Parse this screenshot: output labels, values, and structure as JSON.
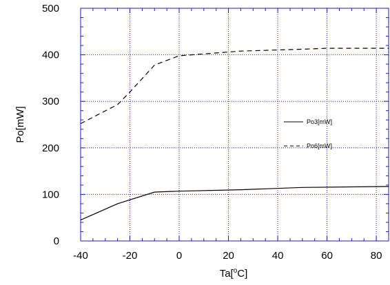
{
  "chart_data": {
    "type": "line",
    "title": "",
    "xlabel": "Ta[",
    "xlabel_sup": "o",
    "xlabel_suffix": "C]",
    "ylabel": "Po[mW]",
    "xlim": [
      -40,
      85
    ],
    "ylim": [
      0,
      500
    ],
    "xticks": [
      -40,
      -20,
      0,
      20,
      40,
      60,
      80
    ],
    "xtick_labels": [
      "-40",
      "-20",
      "0",
      "20",
      "40",
      "60",
      "80"
    ],
    "yticks": [
      0,
      100,
      200,
      300,
      400,
      500
    ],
    "ytick_labels": [
      "0",
      "100",
      "200",
      "300",
      "400",
      "500"
    ],
    "grid": true,
    "legend_position": "right",
    "series": [
      {
        "name": "Po3[mW]",
        "style": "solid",
        "color": "#000000",
        "x": [
          -40,
          -25,
          -10,
          0,
          25,
          50,
          85
        ],
        "y": [
          45,
          80,
          105,
          107,
          110,
          115,
          117
        ]
      },
      {
        "name": "Po6[mW]",
        "style": "dashed",
        "color": "#000000",
        "x": [
          -40,
          -25,
          -20,
          -10,
          0,
          25,
          50,
          60,
          85
        ],
        "y": [
          252,
          293,
          320,
          378,
          398,
          408,
          412,
          414,
          414
        ]
      }
    ]
  },
  "colors": {
    "grid": "#1a1acc",
    "frame": "#1a1acc",
    "line": "#000000"
  }
}
